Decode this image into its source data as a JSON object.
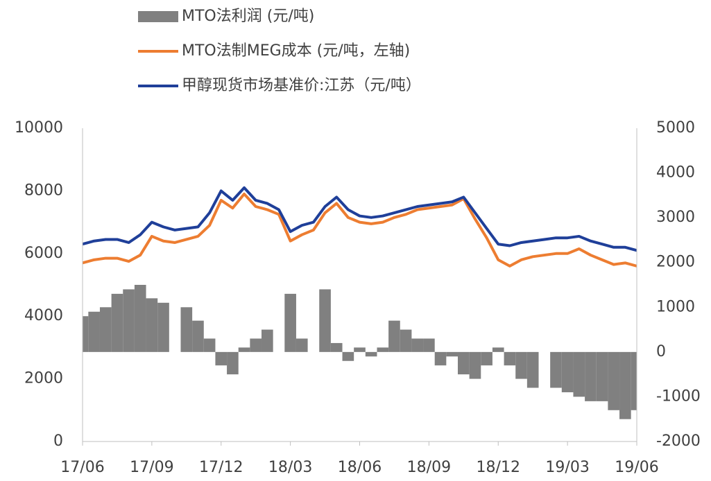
{
  "chart_data": {
    "type": "line",
    "x": [
      0,
      0.5,
      1,
      1.5,
      2,
      2.5,
      3,
      3.5,
      4,
      4.5,
      5,
      5.5,
      6,
      6.5,
      7,
      7.5,
      8,
      8.5,
      9,
      9.5,
      10,
      10.5,
      11,
      11.5,
      12,
      12.5,
      13,
      13.5,
      14,
      14.5,
      15,
      15.5,
      16,
      16.5,
      17,
      17.5,
      18,
      18.5,
      19,
      19.5,
      20,
      20.5,
      21,
      21.5,
      22,
      22.5,
      23,
      23.5,
      24
    ],
    "xlim": [
      0,
      24
    ],
    "xticks": [
      {
        "value": 0,
        "label": "17/06"
      },
      {
        "value": 3,
        "label": "17/09"
      },
      {
        "value": 6,
        "label": "17/12"
      },
      {
        "value": 9,
        "label": "18/03"
      },
      {
        "value": 12,
        "label": "18/06"
      },
      {
        "value": 15,
        "label": "18/09"
      },
      {
        "value": 18,
        "label": "18/12"
      },
      {
        "value": 21,
        "label": "19/03"
      },
      {
        "value": 24,
        "label": "19/06"
      }
    ],
    "ylim": [
      0,
      10000
    ],
    "yticks": [
      0,
      2000,
      4000,
      6000,
      8000,
      10000
    ],
    "y2lim": [
      -2000,
      5000
    ],
    "y2ticks": [
      -2000,
      -1000,
      0,
      1000,
      2000,
      3000,
      4000,
      5000
    ],
    "series": [
      {
        "name": "MTO法利润 (元/吨)",
        "type": "bar",
        "axis": "y2",
        "color": "#808080",
        "values": [
          800,
          900,
          1000,
          1300,
          1400,
          1500,
          1200,
          1100,
          null,
          1000,
          700,
          300,
          -300,
          -500,
          100,
          300,
          500,
          null,
          1300,
          300,
          null,
          1400,
          200,
          -200,
          100,
          -100,
          100,
          700,
          500,
          300,
          300,
          -300,
          -100,
          -500,
          -600,
          -300,
          100,
          -300,
          -600,
          -800,
          null,
          -800,
          -900,
          -1000,
          -1100,
          -1100,
          -1300,
          -1500,
          -1300
        ]
      },
      {
        "name": "MTO法制MEG成本 (元/吨，左轴)",
        "type": "line",
        "color": "#ed7d31",
        "values": [
          5700,
          5800,
          5850,
          5850,
          5750,
          5950,
          6550,
          6400,
          6350,
          6450,
          6550,
          6900,
          7700,
          7450,
          7900,
          7500,
          7400,
          7250,
          6400,
          6600,
          6750,
          7300,
          7600,
          7150,
          7000,
          6950,
          7000,
          7150,
          7250,
          7400,
          7450,
          7500,
          7550,
          7750,
          7100,
          6500,
          5800,
          5600,
          5800,
          5900,
          5950,
          6000,
          6000,
          6150,
          5950,
          5800,
          5650,
          5700,
          5600
        ]
      },
      {
        "name": "甲醇现货市场基准价:江苏（元/吨）",
        "type": "line",
        "color": "#1f3f99",
        "values": [
          6300,
          6400,
          6450,
          6450,
          6350,
          6600,
          7000,
          6850,
          6750,
          6800,
          6850,
          7300,
          8000,
          7700,
          8100,
          7700,
          7600,
          7400,
          6700,
          6900,
          7000,
          7500,
          7800,
          7400,
          7200,
          7150,
          7200,
          7300,
          7400,
          7500,
          7550,
          7600,
          7650,
          7800,
          7300,
          6800,
          6300,
          6250,
          6350,
          6400,
          6450,
          6500,
          6500,
          6550,
          6400,
          6300,
          6200,
          6200,
          6100
        ]
      }
    ]
  }
}
